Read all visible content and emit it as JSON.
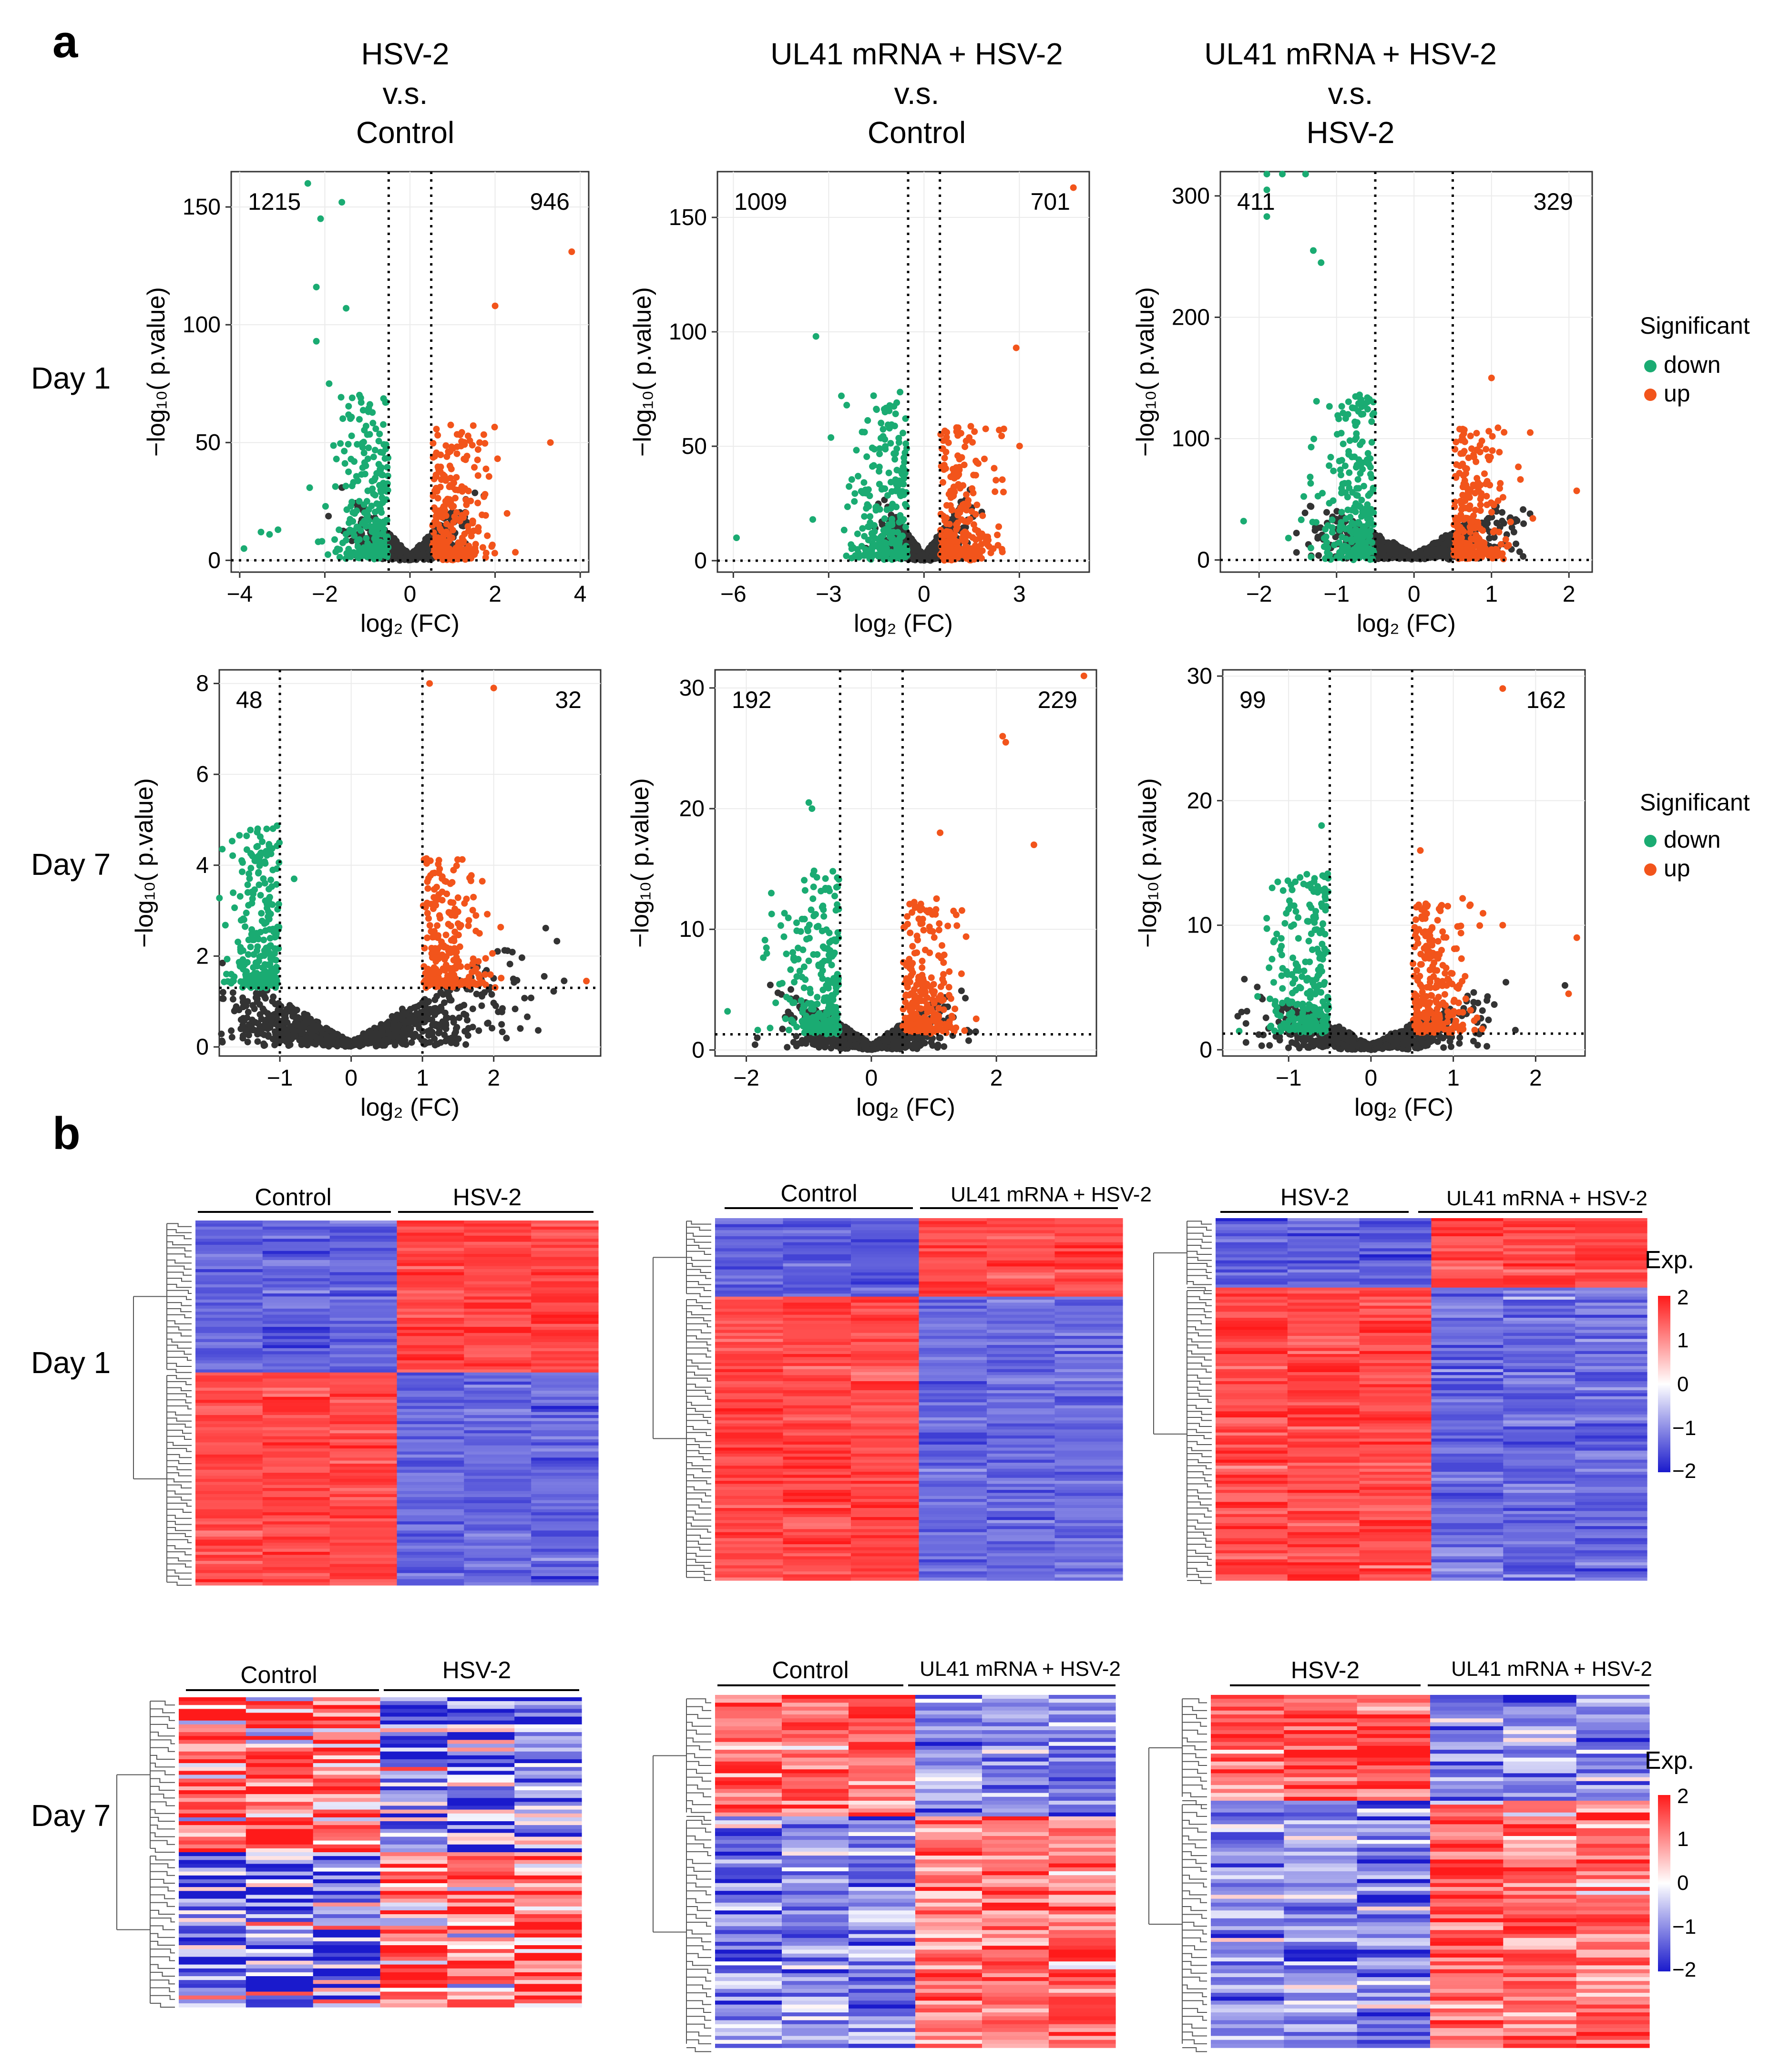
{
  "panel_labels": {
    "a": "a",
    "b": "b"
  },
  "column_titles": [
    [
      "HSV-2",
      "v.s.",
      "Control"
    ],
    [
      "UL41 mRNA + HSV-2",
      "v.s.",
      "Control"
    ],
    [
      "UL41 mRNA + HSV-2",
      "v.s.",
      "HSV-2"
    ]
  ],
  "row_labels": {
    "day1": "Day 1",
    "day7": "Day 7"
  },
  "axis_labels": {
    "x": "log₂ (FC)",
    "y": "−log₁₀( p.value)"
  },
  "legend": {
    "title": "Significant",
    "down_label": "down",
    "up_label": "up",
    "down_color": "#1aab72",
    "up_color": "#f2541b",
    "ns_color": "#333333"
  },
  "heatmap_legend": {
    "title": "Exp.",
    "ticks": [
      "2",
      "1",
      "0",
      "−1",
      "−2"
    ],
    "high_color": "#ff1a1a",
    "mid_color": "#ffffff",
    "low_color": "#1a1acc"
  },
  "chart_data": [
    {
      "type": "scatter",
      "id": "v11",
      "title": "HSV-2 v.s. Control, Day 1",
      "xlim": [
        -4.2,
        4.2
      ],
      "ylim": [
        -5,
        165
      ],
      "xticks": [
        -4,
        -2,
        0,
        2,
        4
      ],
      "yticks": [
        0,
        50,
        100,
        150
      ],
      "vlines": [
        -0.5,
        0.5
      ],
      "hline": 0,
      "down_count": "1215",
      "up_count": "946",
      "highlight_points": [
        [
          -2.4,
          160
        ],
        [
          -1.6,
          152
        ],
        [
          -2.1,
          145
        ],
        [
          -2.2,
          116
        ],
        [
          -1.5,
          107
        ],
        [
          -2.2,
          93
        ],
        [
          -1.9,
          75
        ],
        [
          2.0,
          108
        ],
        [
          3.8,
          131
        ],
        [
          3.3,
          50
        ],
        [
          -3.9,
          5
        ],
        [
          -3.5,
          12
        ],
        [
          -3.3,
          11
        ],
        [
          -3.1,
          13
        ]
      ]
    },
    {
      "type": "scatter",
      "id": "v12",
      "title": "UL41 mRNA + HSV-2 v.s. Control, Day 1",
      "xlim": [
        -6.5,
        5.2
      ],
      "ylim": [
        -5,
        170
      ],
      "xticks": [
        -6,
        -3,
        0,
        3
      ],
      "yticks": [
        0,
        50,
        100,
        150
      ],
      "vlines": [
        -0.5,
        0.5
      ],
      "hline": 0,
      "down_count": "1009",
      "up_count": "701",
      "highlight_points": [
        [
          4.7,
          163
        ],
        [
          -3.4,
          98
        ],
        [
          2.9,
          93
        ],
        [
          -2.6,
          72
        ],
        [
          -5.9,
          10
        ],
        [
          -3.5,
          18
        ],
        [
          2.5,
          30
        ]
      ]
    },
    {
      "type": "scatter",
      "id": "v13",
      "title": "UL41 mRNA + HSV-2 v.s. HSV-2, Day 1",
      "xlim": [
        -2.5,
        2.3
      ],
      "ylim": [
        -10,
        320
      ],
      "xticks": [
        -2,
        -1,
        0,
        1,
        2
      ],
      "yticks": [
        0,
        100,
        200,
        300
      ],
      "vlines": [
        -0.5,
        0.5
      ],
      "hline": 0,
      "down_count": "411",
      "up_count": "329",
      "highlight_points": [
        [
          -1.9,
          318
        ],
        [
          -1.7,
          318
        ],
        [
          -1.4,
          318
        ],
        [
          -1.9,
          305
        ],
        [
          -1.9,
          283
        ],
        [
          -1.3,
          255
        ],
        [
          -1.2,
          245
        ],
        [
          1.0,
          150
        ],
        [
          1.5,
          105
        ],
        [
          2.1,
          57
        ],
        [
          -2.2,
          32
        ]
      ]
    },
    {
      "type": "scatter",
      "id": "v21",
      "title": "HSV-2 v.s. Control, Day 7",
      "xlim": [
        -1.85,
        3.5
      ],
      "ylim": [
        -0.2,
        8.3
      ],
      "xticks": [
        -1,
        0,
        1,
        2
      ],
      "yticks": [
        0,
        2,
        4,
        6,
        8
      ],
      "vlines": [
        -1,
        1
      ],
      "hline": 1.3,
      "down_count": "48",
      "up_count": "32",
      "highlight_points": [
        [
          1.1,
          8.0
        ],
        [
          2.0,
          7.9
        ],
        [
          -1.3,
          4.2
        ],
        [
          -1.45,
          3.4
        ],
        [
          -1.55,
          2.1
        ],
        [
          -0.8,
          3.7
        ],
        [
          3.3,
          1.45
        ],
        [
          1.8,
          2.5
        ]
      ]
    },
    {
      "type": "scatter",
      "id": "v22",
      "title": "UL41 mRNA + HSV-2 v.s. Control, Day 7",
      "xlim": [
        -2.5,
        3.6
      ],
      "ylim": [
        -0.5,
        31.5
      ],
      "xticks": [
        -2,
        0,
        2
      ],
      "yticks": [
        0,
        10,
        20,
        30
      ],
      "vlines": [
        -0.5,
        0.5
      ],
      "hline": 1.3,
      "down_count": "192",
      "up_count": "229",
      "highlight_points": [
        [
          3.4,
          31
        ],
        [
          2.1,
          26
        ],
        [
          2.15,
          25.5
        ],
        [
          -1.0,
          20.5
        ],
        [
          -0.95,
          20
        ],
        [
          1.1,
          18
        ],
        [
          2.6,
          17
        ],
        [
          -2.3,
          3.2
        ],
        [
          -1.6,
          13
        ]
      ]
    },
    {
      "type": "scatter",
      "id": "v23",
      "title": "UL41 mRNA + HSV-2 v.s. HSV-2, Day 7",
      "xlim": [
        -1.8,
        2.6
      ],
      "ylim": [
        -0.5,
        30.5
      ],
      "xticks": [
        -1,
        0,
        1,
        2
      ],
      "yticks": [
        0,
        10,
        20,
        30
      ],
      "vlines": [
        -0.5,
        0.5
      ],
      "hline": 1.3,
      "down_count": "99",
      "up_count": "162",
      "highlight_points": [
        [
          1.6,
          29
        ],
        [
          -0.6,
          18
        ],
        [
          -1.2,
          13
        ],
        [
          0.6,
          16
        ],
        [
          2.5,
          9
        ],
        [
          1.6,
          10
        ],
        [
          -1.6,
          1.5
        ],
        [
          2.4,
          4.5
        ]
      ]
    },
    {
      "type": "heatmap",
      "id": "h11",
      "title": "Day 1: Control vs HSV-2",
      "groups": [
        "Control",
        "HSV-2"
      ],
      "n_columns": 6,
      "n_rows": 120,
      "block_boundary": 0.42,
      "top_block": "low-high",
      "noise": 0.12,
      "color_range": [
        -2,
        2
      ]
    },
    {
      "type": "heatmap",
      "id": "h12",
      "title": "Day 1: Control vs UL41 mRNA + HSV-2",
      "groups": [
        "Control",
        "UL41 mRNA + HSV-2"
      ],
      "n_columns": 6,
      "n_rows": 120,
      "block_boundary": 0.22,
      "top_block": "low-high",
      "noise": 0.12,
      "color_range": [
        -2,
        2
      ]
    },
    {
      "type": "heatmap",
      "id": "h13",
      "title": "Day 1: HSV-2 vs UL41 mRNA + HSV-2",
      "groups": [
        "HSV-2",
        "UL41 mRNA + HSV-2"
      ],
      "n_columns": 6,
      "n_rows": 120,
      "block_boundary": 0.19,
      "top_block": "low-high",
      "noise": 0.15,
      "color_range": [
        -2,
        2
      ]
    },
    {
      "type": "heatmap",
      "id": "h21",
      "title": "Day 7: Control vs HSV-2",
      "groups": [
        "Control",
        "HSV-2"
      ],
      "n_columns": 6,
      "n_rows": 80,
      "block_boundary": 0.5,
      "top_block": "high-low",
      "noise": 0.7,
      "color_range": [
        -2,
        2
      ]
    },
    {
      "type": "heatmap",
      "id": "h22",
      "title": "Day 7: Control vs UL41 mRNA + HSV-2",
      "groups": [
        "Control",
        "UL41 mRNA + HSV-2"
      ],
      "n_columns": 6,
      "n_rows": 90,
      "block_boundary": 0.35,
      "top_block": "high-low",
      "noise": 0.35,
      "color_range": [
        -2,
        2
      ]
    },
    {
      "type": "heatmap",
      "id": "h23",
      "title": "Day 7: HSV-2 vs UL41 mRNA + HSV-2",
      "groups": [
        "HSV-2",
        "UL41 mRNA + HSV-2"
      ],
      "n_columns": 6,
      "n_rows": 90,
      "block_boundary": 0.3,
      "top_block": "high-low",
      "noise": 0.35,
      "color_range": [
        -2,
        2
      ]
    }
  ]
}
